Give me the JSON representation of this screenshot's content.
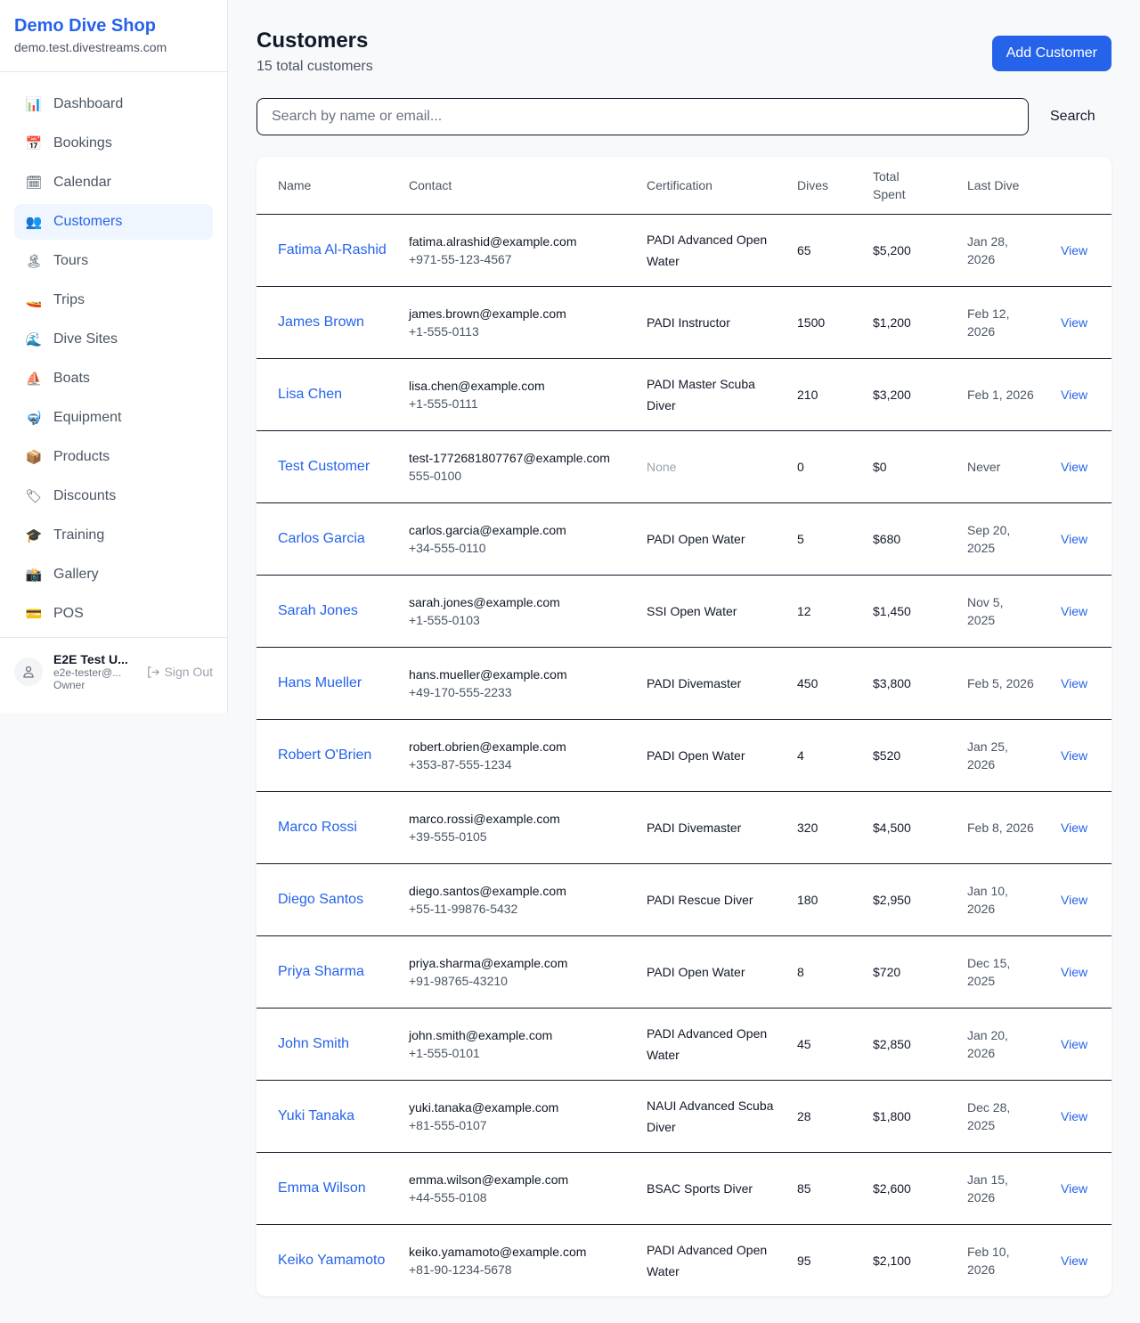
{
  "brand": {
    "name": "Demo Dive Shop",
    "domain": "demo.test.divestreams.com"
  },
  "nav": [
    {
      "label": "Dashboard",
      "icon": "📊",
      "active": false
    },
    {
      "label": "Bookings",
      "icon": "📅",
      "active": false
    },
    {
      "label": "Calendar",
      "icon": "🗓",
      "active": false
    },
    {
      "label": "Customers",
      "icon": "👥",
      "active": true
    },
    {
      "label": "Tours",
      "icon": "🏝",
      "active": false
    },
    {
      "label": "Trips",
      "icon": "🚤",
      "active": false
    },
    {
      "label": "Dive Sites",
      "icon": "🌊",
      "active": false
    },
    {
      "label": "Boats",
      "icon": "⛵",
      "active": false
    },
    {
      "label": "Equipment",
      "icon": "🤿",
      "active": false
    },
    {
      "label": "Products",
      "icon": "📦",
      "active": false
    },
    {
      "label": "Discounts",
      "icon": "🏷",
      "active": false
    },
    {
      "label": "Training",
      "icon": "🎓",
      "active": false
    },
    {
      "label": "Gallery",
      "icon": "📸",
      "active": false
    },
    {
      "label": "POS",
      "icon": "💳",
      "active": false
    }
  ],
  "user": {
    "name": "E2E Test U...",
    "email": "e2e-tester@...",
    "role": "Owner",
    "sign_out": "Sign Out"
  },
  "page": {
    "title": "Customers",
    "subtitle": "15 total customers",
    "add_label": "Add Customer",
    "search_placeholder": "Search by name or email...",
    "search_label": "Search"
  },
  "table": {
    "headers": [
      "Name",
      "Contact",
      "Certification",
      "Dives",
      "Total Spent",
      "Last Dive",
      ""
    ],
    "action_label": "View",
    "rows": [
      {
        "name": "Fatima Al-Rashid",
        "email": "fatima.alrashid@example.com",
        "phone": "+971-55-123-4567",
        "cert": "PADI Advanced Open Water",
        "dives": "65",
        "spent": "$5,200",
        "last": "Jan 28, 2026"
      },
      {
        "name": "James Brown",
        "email": "james.brown@example.com",
        "phone": "+1-555-0113",
        "cert": "PADI Instructor",
        "dives": "1500",
        "spent": "$1,200",
        "last": "Feb 12, 2026"
      },
      {
        "name": "Lisa Chen",
        "email": "lisa.chen@example.com",
        "phone": "+1-555-0111",
        "cert": "PADI Master Scuba Diver",
        "dives": "210",
        "spent": "$3,200",
        "last": "Feb 1, 2026"
      },
      {
        "name": "Test Customer",
        "email": "test-1772681807767@example.com",
        "phone": "555-0100",
        "cert": "None",
        "dives": "0",
        "spent": "$0",
        "last": "Never"
      },
      {
        "name": "Carlos Garcia",
        "email": "carlos.garcia@example.com",
        "phone": "+34-555-0110",
        "cert": "PADI Open Water",
        "dives": "5",
        "spent": "$680",
        "last": "Sep 20, 2025"
      },
      {
        "name": "Sarah Jones",
        "email": "sarah.jones@example.com",
        "phone": "+1-555-0103",
        "cert": "SSI Open Water",
        "dives": "12",
        "spent": "$1,450",
        "last": "Nov 5, 2025"
      },
      {
        "name": "Hans Mueller",
        "email": "hans.mueller@example.com",
        "phone": "+49-170-555-2233",
        "cert": "PADI Divemaster",
        "dives": "450",
        "spent": "$3,800",
        "last": "Feb 5, 2026"
      },
      {
        "name": "Robert O'Brien",
        "email": "robert.obrien@example.com",
        "phone": "+353-87-555-1234",
        "cert": "PADI Open Water",
        "dives": "4",
        "spent": "$520",
        "last": "Jan 25, 2026"
      },
      {
        "name": "Marco Rossi",
        "email": "marco.rossi@example.com",
        "phone": "+39-555-0105",
        "cert": "PADI Divemaster",
        "dives": "320",
        "spent": "$4,500",
        "last": "Feb 8, 2026"
      },
      {
        "name": "Diego Santos",
        "email": "diego.santos@example.com",
        "phone": "+55-11-99876-5432",
        "cert": "PADI Rescue Diver",
        "dives": "180",
        "spent": "$2,950",
        "last": "Jan 10, 2026"
      },
      {
        "name": "Priya Sharma",
        "email": "priya.sharma@example.com",
        "phone": "+91-98765-43210",
        "cert": "PADI Open Water",
        "dives": "8",
        "spent": "$720",
        "last": "Dec 15, 2025"
      },
      {
        "name": "John Smith",
        "email": "john.smith@example.com",
        "phone": "+1-555-0101",
        "cert": "PADI Advanced Open Water",
        "dives": "45",
        "spent": "$2,850",
        "last": "Jan 20, 2026"
      },
      {
        "name": "Yuki Tanaka",
        "email": "yuki.tanaka@example.com",
        "phone": "+81-555-0107",
        "cert": "NAUI Advanced Scuba Diver",
        "dives": "28",
        "spent": "$1,800",
        "last": "Dec 28, 2025"
      },
      {
        "name": "Emma Wilson",
        "email": "emma.wilson@example.com",
        "phone": "+44-555-0108",
        "cert": "BSAC Sports Diver",
        "dives": "85",
        "spent": "$2,600",
        "last": "Jan 15, 2026"
      },
      {
        "name": "Keiko Yamamoto",
        "email": "keiko.yamamoto@example.com",
        "phone": "+81-90-1234-5678",
        "cert": "PADI Advanced Open Water",
        "dives": "95",
        "spent": "$2,100",
        "last": "Feb 10, 2026"
      }
    ]
  }
}
